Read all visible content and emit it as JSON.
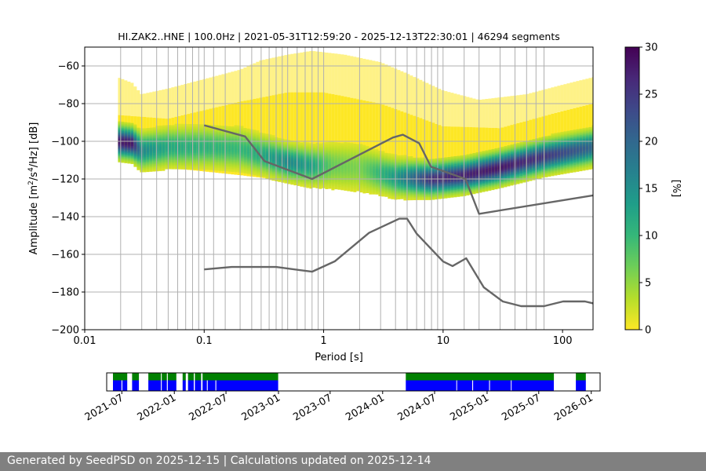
{
  "chart_data": {
    "type": "heatmap",
    "title": "HI.ZAK2..HNE | 100.0Hz | 2021-05-31T12:59:20 - 2025-12-13T22:30:01 | 46294 segments",
    "xlabel": "Period [s]",
    "ylabel_main": "Amplitude [m",
    "ylabel_sup1": "2",
    "ylabel_mid": "/s",
    "ylabel_sup2": "4",
    "ylabel_end": "/Hz] [dB]",
    "xscale": "log",
    "xlim": [
      0.01,
      180
    ],
    "ylim": [
      -200,
      -50
    ],
    "grid": true,
    "x_ticks": [
      {
        "value": 0.01,
        "label": "0.01"
      },
      {
        "value": 0.1,
        "label": "0.1"
      },
      {
        "value": 1,
        "label": "1"
      },
      {
        "value": 10,
        "label": "10"
      },
      {
        "value": 100,
        "label": "100"
      }
    ],
    "y_ticks": [
      {
        "value": -60,
        "label": "−60"
      },
      {
        "value": -80,
        "label": "−80"
      },
      {
        "value": -100,
        "label": "−100"
      },
      {
        "value": -120,
        "label": "−120"
      },
      {
        "value": -140,
        "label": "−140"
      },
      {
        "value": -160,
        "label": "−160"
      },
      {
        "value": -180,
        "label": "−180"
      },
      {
        "value": -200,
        "label": "−200"
      }
    ],
    "vertical_grid_periods": [
      0.02,
      0.03,
      0.04,
      0.05,
      0.06,
      0.07,
      0.08,
      0.09,
      0.1,
      0.12,
      0.15,
      0.2,
      0.25,
      0.3,
      0.35,
      0.4,
      0.45,
      0.5,
      0.6,
      0.7,
      0.8,
      0.9,
      1,
      2,
      3,
      4,
      5,
      6,
      7,
      8,
      9,
      10,
      15,
      20,
      30,
      40,
      50,
      60,
      70
    ],
    "colorbar": {
      "label": "[%]",
      "range": [
        0,
        30
      ],
      "ticks": [
        {
          "value": 0,
          "label": "0"
        },
        {
          "value": 5,
          "label": "5"
        },
        {
          "value": 10,
          "label": "10"
        },
        {
          "value": 15,
          "label": "15"
        },
        {
          "value": 20,
          "label": "20"
        },
        {
          "value": 25,
          "label": "25"
        },
        {
          "value": 30,
          "label": "30"
        }
      ],
      "colormap": [
        "#fde725",
        "#b5de2b",
        "#6ece58",
        "#35b779",
        "#1f9e89",
        "#26828e",
        "#31688e",
        "#3e4989",
        "#482878",
        "#440154"
      ]
    },
    "distribution": {
      "low_color": "#fde725",
      "bottom": [
        {
          "x": 0.019,
          "y": -104
        },
        {
          "x": 0.025,
          "y": -106
        },
        {
          "x": 0.03,
          "y": -112
        },
        {
          "x": 0.05,
          "y": -114
        },
        {
          "x": 0.1,
          "y": -116
        },
        {
          "x": 0.2,
          "y": -118
        },
        {
          "x": 0.5,
          "y": -121
        },
        {
          "x": 1,
          "y": -123
        },
        {
          "x": 2,
          "y": -123
        },
        {
          "x": 5,
          "y": -123
        },
        {
          "x": 10,
          "y": -122
        },
        {
          "x": 20,
          "y": -121
        },
        {
          "x": 50,
          "y": -116
        },
        {
          "x": 100,
          "y": -111
        },
        {
          "x": 180,
          "y": -109
        }
      ],
      "top": [
        {
          "x": 0.019,
          "y": -66
        },
        {
          "x": 0.025,
          "y": -69
        },
        {
          "x": 0.03,
          "y": -75
        },
        {
          "x": 0.05,
          "y": -72
        },
        {
          "x": 0.1,
          "y": -67
        },
        {
          "x": 0.2,
          "y": -62
        },
        {
          "x": 0.3,
          "y": -57
        },
        {
          "x": 0.5,
          "y": -54
        },
        {
          "x": 0.8,
          "y": -52
        },
        {
          "x": 1.5,
          "y": -54
        },
        {
          "x": 3,
          "y": -58
        },
        {
          "x": 5,
          "y": -64
        },
        {
          "x": 10,
          "y": -73
        },
        {
          "x": 20,
          "y": -78
        },
        {
          "x": 50,
          "y": -75
        },
        {
          "x": 100,
          "y": -70
        },
        {
          "x": 180,
          "y": -66
        }
      ],
      "dense_top": [
        {
          "x": 0.019,
          "y": -86
        },
        {
          "x": 0.05,
          "y": -88
        },
        {
          "x": 0.2,
          "y": -79
        },
        {
          "x": 0.5,
          "y": -74
        },
        {
          "x": 1,
          "y": -74
        },
        {
          "x": 3,
          "y": -80
        },
        {
          "x": 10,
          "y": -92
        },
        {
          "x": 30,
          "y": -93
        },
        {
          "x": 100,
          "y": -84
        },
        {
          "x": 180,
          "y": -80
        }
      ],
      "mode": [
        {
          "x": 0.019,
          "y": -100,
          "p": 28
        },
        {
          "x": 0.025,
          "y": -101,
          "p": 28
        },
        {
          "x": 0.03,
          "y": -105,
          "p": 16
        },
        {
          "x": 0.05,
          "y": -103,
          "p": 12
        },
        {
          "x": 0.1,
          "y": -103,
          "p": 11
        },
        {
          "x": 0.2,
          "y": -104,
          "p": 10
        },
        {
          "x": 0.3,
          "y": -107,
          "p": 12
        },
        {
          "x": 0.5,
          "y": -111,
          "p": 16
        },
        {
          "x": 0.8,
          "y": -113,
          "p": 13
        },
        {
          "x": 1.2,
          "y": -113,
          "p": 7
        },
        {
          "x": 2,
          "y": -114,
          "p": 6
        },
        {
          "x": 4,
          "y": -119,
          "p": 14
        },
        {
          "x": 8,
          "y": -120,
          "p": 26
        },
        {
          "x": 15,
          "y": -118,
          "p": 27
        },
        {
          "x": 30,
          "y": -114,
          "p": 28
        },
        {
          "x": 70,
          "y": -108,
          "p": 25
        },
        {
          "x": 180,
          "y": -103,
          "p": 20
        }
      ]
    },
    "noise_models": [
      {
        "name": "NHNM",
        "color": "#666666",
        "points": [
          {
            "x": 0.1,
            "y": -91.5
          },
          {
            "x": 0.22,
            "y": -97.4
          },
          {
            "x": 0.32,
            "y": -110.5
          },
          {
            "x": 0.8,
            "y": -120
          },
          {
            "x": 3.8,
            "y": -98
          },
          {
            "x": 4.6,
            "y": -96.5
          },
          {
            "x": 6.3,
            "y": -101
          },
          {
            "x": 7.9,
            "y": -113.5
          },
          {
            "x": 15.4,
            "y": -120
          },
          {
            "x": 20,
            "y": -138.5
          },
          {
            "x": 180,
            "y": -128.7
          }
        ]
      },
      {
        "name": "NLNM",
        "color": "#666666",
        "points": [
          {
            "x": 0.1,
            "y": -168
          },
          {
            "x": 0.17,
            "y": -166.7
          },
          {
            "x": 0.4,
            "y": -166.7
          },
          {
            "x": 0.8,
            "y": -169.2
          },
          {
            "x": 1.24,
            "y": -163.7
          },
          {
            "x": 2.4,
            "y": -148.6
          },
          {
            "x": 4.3,
            "y": -141.1
          },
          {
            "x": 5,
            "y": -141.1
          },
          {
            "x": 6,
            "y": -149
          },
          {
            "x": 10,
            "y": -163.8
          },
          {
            "x": 12,
            "y": -166.2
          },
          {
            "x": 15.6,
            "y": -162.1
          },
          {
            "x": 21.9,
            "y": -177.5
          },
          {
            "x": 31.6,
            "y": -185
          },
          {
            "x": 45,
            "y": -187.5
          },
          {
            "x": 70,
            "y": -187.5
          },
          {
            "x": 101,
            "y": -185
          },
          {
            "x": 154,
            "y": -185
          },
          {
            "x": 180,
            "y": -186
          }
        ]
      }
    ],
    "availability": {
      "xlim": [
        "2021-05-09",
        "2026-02-01"
      ],
      "ticks": [
        {
          "date": "2021-07-01",
          "label": "2021-07"
        },
        {
          "date": "2022-01-01",
          "label": "2022-01"
        },
        {
          "date": "2022-07-01",
          "label": "2022-07"
        },
        {
          "date": "2023-01-01",
          "label": "2023-01"
        },
        {
          "date": "2023-07-01",
          "label": "2023-07"
        },
        {
          "date": "2024-01-01",
          "label": "2024-01"
        },
        {
          "date": "2024-07-01",
          "label": "2024-07"
        },
        {
          "date": "2025-01-01",
          "label": "2025-01"
        },
        {
          "date": "2025-07-01",
          "label": "2025-07"
        },
        {
          "date": "2026-01-01",
          "label": "2026-01"
        }
      ],
      "processed_color": "#008000",
      "data_color": "#0000ff",
      "processed_ranges": [
        [
          "2021-05-31",
          "2021-07-20"
        ],
        [
          "2021-08-06",
          "2021-08-30"
        ],
        [
          "2021-10-02",
          "2021-11-15"
        ],
        [
          "2021-11-18",
          "2021-12-06"
        ],
        [
          "2021-12-09",
          "2022-01-08"
        ],
        [
          "2022-01-30",
          "2022-02-10"
        ],
        [
          "2022-02-18",
          "2022-03-10"
        ],
        [
          "2022-03-14",
          "2022-04-05"
        ],
        [
          "2022-04-10",
          "2022-12-31"
        ],
        [
          "2024-03-22",
          "2025-08-23"
        ],
        [
          "2025-11-08",
          "2025-12-13"
        ]
      ],
      "data_ranges": [
        [
          "2021-05-31",
          "2021-06-30"
        ],
        [
          "2021-07-03",
          "2021-07-20"
        ],
        [
          "2021-08-06",
          "2021-08-30"
        ],
        [
          "2021-10-02",
          "2021-11-15"
        ],
        [
          "2021-11-18",
          "2021-12-06"
        ],
        [
          "2021-12-09",
          "2022-01-08"
        ],
        [
          "2022-01-30",
          "2022-02-10"
        ],
        [
          "2022-02-18",
          "2022-03-10"
        ],
        [
          "2022-03-14",
          "2022-04-05"
        ],
        [
          "2022-04-10",
          "2022-04-25"
        ],
        [
          "2022-04-28",
          "2022-05-25"
        ],
        [
          "2022-05-28",
          "2022-12-31"
        ],
        [
          "2024-03-22",
          "2024-09-15"
        ],
        [
          "2024-09-18",
          "2024-11-10"
        ],
        [
          "2024-11-13",
          "2025-01-08"
        ],
        [
          "2025-01-11",
          "2025-03-25"
        ],
        [
          "2025-03-28",
          "2025-08-23"
        ],
        [
          "2025-11-08",
          "2025-12-13"
        ]
      ]
    }
  },
  "footer": {
    "text": "Generated by SeedPSD on 2025-12-15 | Calculations updated on 2025-12-14"
  }
}
